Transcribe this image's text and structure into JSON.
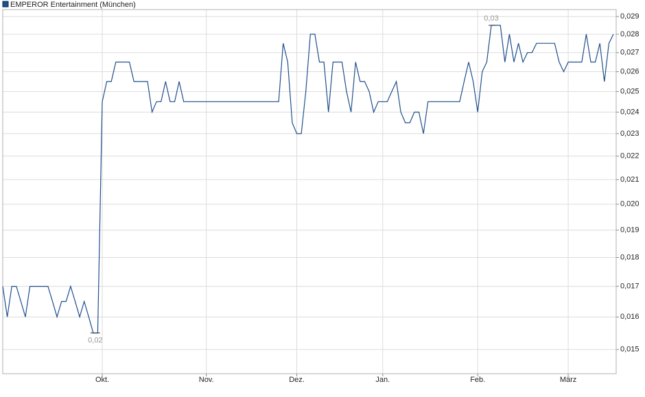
{
  "chart_data": {
    "type": "line",
    "categories": [
      null,
      null,
      null,
      null,
      null,
      null,
      null,
      null,
      null,
      null,
      null,
      null,
      null,
      null,
      null,
      null,
      null,
      null,
      null,
      null,
      null,
      null,
      "Okt.",
      null,
      null,
      null,
      null,
      null,
      null,
      null,
      null,
      null,
      null,
      null,
      null,
      null,
      null,
      null,
      null,
      null,
      null,
      null,
      null,
      null,
      null,
      "Nov.",
      null,
      null,
      null,
      null,
      null,
      null,
      null,
      null,
      null,
      null,
      null,
      null,
      null,
      null,
      null,
      null,
      null,
      null,
      null,
      "Dez.",
      null,
      null,
      null,
      null,
      null,
      null,
      null,
      null,
      null,
      null,
      null,
      null,
      null,
      null,
      null,
      null,
      null,
      null,
      "Jan.",
      null,
      null,
      null,
      null,
      null,
      null,
      null,
      null,
      null,
      null,
      null,
      null,
      null,
      null,
      null,
      null,
      null,
      null,
      null,
      null,
      "Feb.",
      null,
      null,
      null,
      null,
      null,
      null,
      null,
      null,
      null,
      null,
      null,
      null,
      null,
      null,
      null,
      null,
      null,
      null,
      null,
      "März",
      null,
      null,
      null,
      null,
      null,
      null,
      null,
      null,
      null,
      null
    ],
    "series": [
      {
        "name": "EMPEROR Entertainment (München)",
        "color": "#1f4e8c",
        "values": [
          0.017,
          0.016,
          0.017,
          0.017,
          0.0165,
          0.016,
          0.017,
          0.017,
          0.017,
          0.017,
          0.017,
          0.0165,
          0.016,
          0.0165,
          0.0165,
          0.017,
          0.0165,
          0.016,
          0.0165,
          0.016,
          0.0155,
          0.0155,
          0.0245,
          0.0255,
          0.0255,
          0.0265,
          0.0265,
          0.0265,
          0.0265,
          0.0255,
          0.0255,
          0.0255,
          0.0255,
          0.024,
          0.0245,
          0.0245,
          0.0255,
          0.0245,
          0.0245,
          0.0255,
          0.0245,
          0.0245,
          0.0245,
          0.0245,
          0.0245,
          0.0245,
          0.0245,
          0.0245,
          0.0245,
          0.0245,
          0.0245,
          0.0245,
          0.0245,
          0.0245,
          0.0245,
          0.0245,
          0.0245,
          0.0245,
          0.0245,
          0.0245,
          0.0245,
          0.0245,
          0.0275,
          0.0265,
          0.0235,
          0.023,
          0.023,
          0.025,
          0.028,
          0.028,
          0.0265,
          0.0265,
          0.024,
          0.0265,
          0.0265,
          0.0265,
          0.025,
          0.024,
          0.0265,
          0.0255,
          0.0255,
          0.025,
          0.024,
          0.0245,
          0.0245,
          0.0245,
          0.025,
          0.0255,
          0.024,
          0.0235,
          0.0235,
          0.024,
          0.024,
          0.023,
          0.0245,
          0.0245,
          0.0245,
          0.0245,
          0.0245,
          0.0245,
          0.0245,
          0.0245,
          0.0255,
          0.0265,
          0.0255,
          0.024,
          0.026,
          0.0265,
          0.0285,
          0.0285,
          0.0285,
          0.0265,
          0.028,
          0.0265,
          0.0275,
          0.0265,
          0.027,
          0.027,
          0.0275,
          0.0275,
          0.0275,
          0.0275,
          0.0275,
          0.0265,
          0.026,
          0.0265,
          0.0265,
          0.0265,
          0.0265,
          0.028,
          0.0265,
          0.0265,
          0.0275,
          0.0255,
          0.0275,
          0.028
        ]
      }
    ],
    "high_label": "0,03",
    "low_label": "0,02",
    "log_scale": true,
    "grid": true,
    "ylim": [
      0.0143,
      0.0294
    ],
    "yticks": [
      {
        "value": 0.015,
        "label": "0,015"
      },
      {
        "value": 0.016,
        "label": "0,016"
      },
      {
        "value": 0.017,
        "label": "0,017"
      },
      {
        "value": 0.018,
        "label": "0,018"
      },
      {
        "value": 0.019,
        "label": "0,019"
      },
      {
        "value": 0.02,
        "label": "0,020"
      },
      {
        "value": 0.021,
        "label": "0,021"
      },
      {
        "value": 0.022,
        "label": "0,022"
      },
      {
        "value": 0.023,
        "label": "0,023"
      },
      {
        "value": 0.024,
        "label": "0,024"
      },
      {
        "value": 0.025,
        "label": "0,025"
      },
      {
        "value": 0.026,
        "label": "0,026"
      },
      {
        "value": 0.027,
        "label": "0,027"
      },
      {
        "value": 0.028,
        "label": "0,028"
      },
      {
        "value": 0.029,
        "label": "0,029"
      }
    ]
  }
}
